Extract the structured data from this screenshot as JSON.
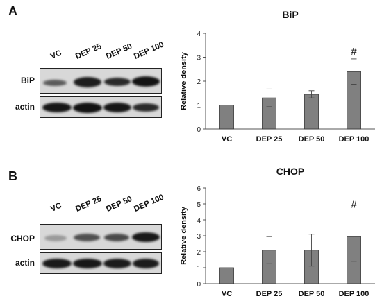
{
  "panels": [
    {
      "letter": "A",
      "lanes": [
        "VC",
        "DEP 25",
        "DEP 50",
        "DEP 100"
      ],
      "rows": [
        "BiP",
        "actin"
      ]
    },
    {
      "letter": "B",
      "lanes": [
        "VC",
        "DEP 25",
        "DEP 50",
        "DEP 100"
      ],
      "rows": [
        "CHOP",
        "actin"
      ]
    }
  ],
  "chart_data": [
    {
      "type": "bar",
      "title": "BiP",
      "ylabel": "Relative density",
      "xlabel": "",
      "categories": [
        "VC",
        "DEP 25",
        "DEP 50",
        "DEP 100"
      ],
      "values": [
        1.0,
        1.3,
        1.45,
        2.4
      ],
      "errors": [
        0,
        0.37,
        0.15,
        0.53
      ],
      "annotations": [
        "",
        "",
        "",
        "#"
      ],
      "ylim": [
        0,
        4
      ],
      "yticks": [
        0,
        1,
        2,
        3,
        4
      ],
      "bar_color": "#808080"
    },
    {
      "type": "bar",
      "title": "CHOP",
      "ylabel": "Relative density",
      "xlabel": "",
      "categories": [
        "VC",
        "DEP 25",
        "DEP 50",
        "DEP 100"
      ],
      "values": [
        1.0,
        2.1,
        2.1,
        2.95
      ],
      "errors": [
        0,
        0.85,
        1.0,
        1.55
      ],
      "annotations": [
        "",
        "",
        "",
        "#"
      ],
      "ylim": [
        0,
        6
      ],
      "yticks": [
        0,
        1,
        2,
        3,
        4,
        5,
        6
      ],
      "bar_color": "#808080"
    }
  ]
}
